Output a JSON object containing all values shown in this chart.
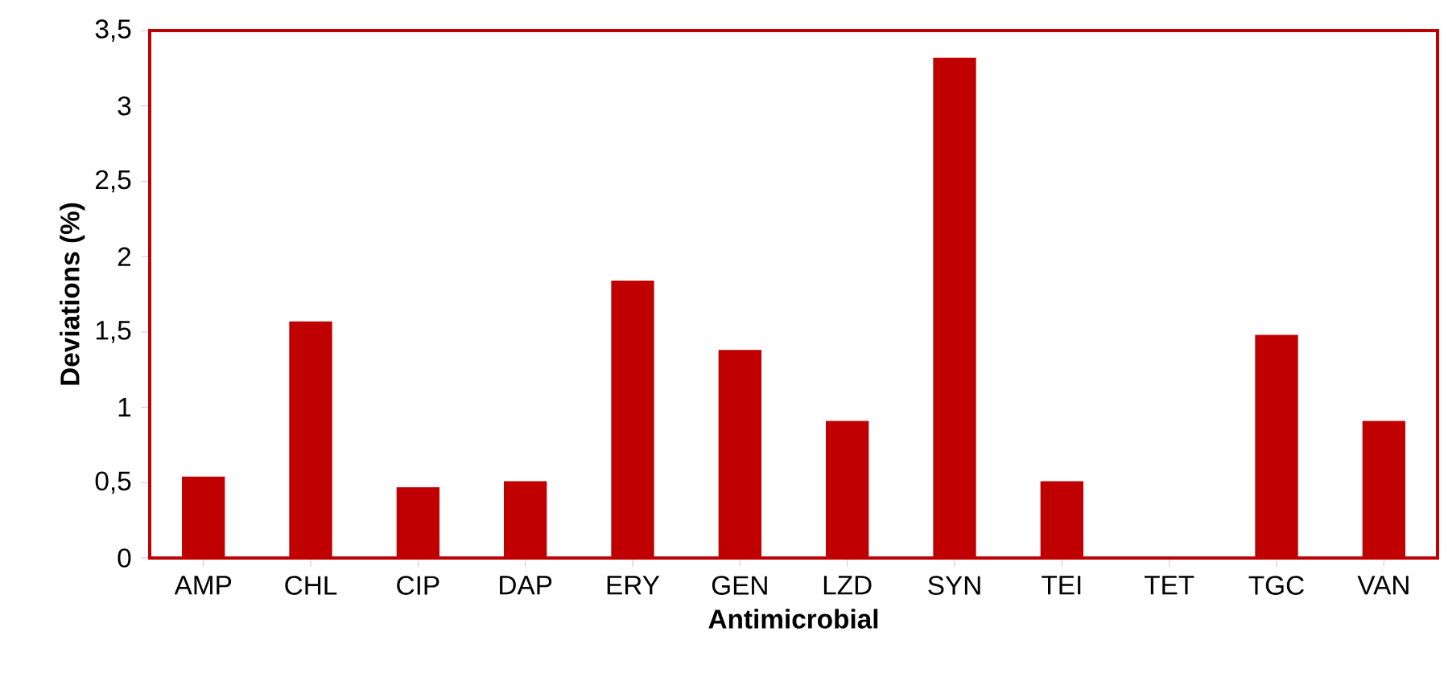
{
  "chart_data": {
    "type": "bar",
    "xlabel": "Antimicrobial",
    "ylabel": "Deviations (%)",
    "categories": [
      "AMP",
      "CHL",
      "CIP",
      "DAP",
      "ERY",
      "GEN",
      "LZD",
      "SYN",
      "TEI",
      "TET",
      "TGC",
      "VAN"
    ],
    "values": [
      0.54,
      1.57,
      0.47,
      0.51,
      1.84,
      1.38,
      0.91,
      3.32,
      0.51,
      0,
      1.48,
      0.91
    ],
    "color": "#c00000",
    "ylim": [
      0,
      3.5
    ],
    "yticks": [
      0,
      {
        "value": 0.5,
        "label": "0,5"
      },
      1,
      {
        "value": 1.5,
        "label": "1,5"
      },
      2,
      {
        "value": 2.5,
        "label": "2,5"
      },
      3,
      {
        "value": 3.5,
        "label": "3,5"
      }
    ],
    "grid": false
  }
}
